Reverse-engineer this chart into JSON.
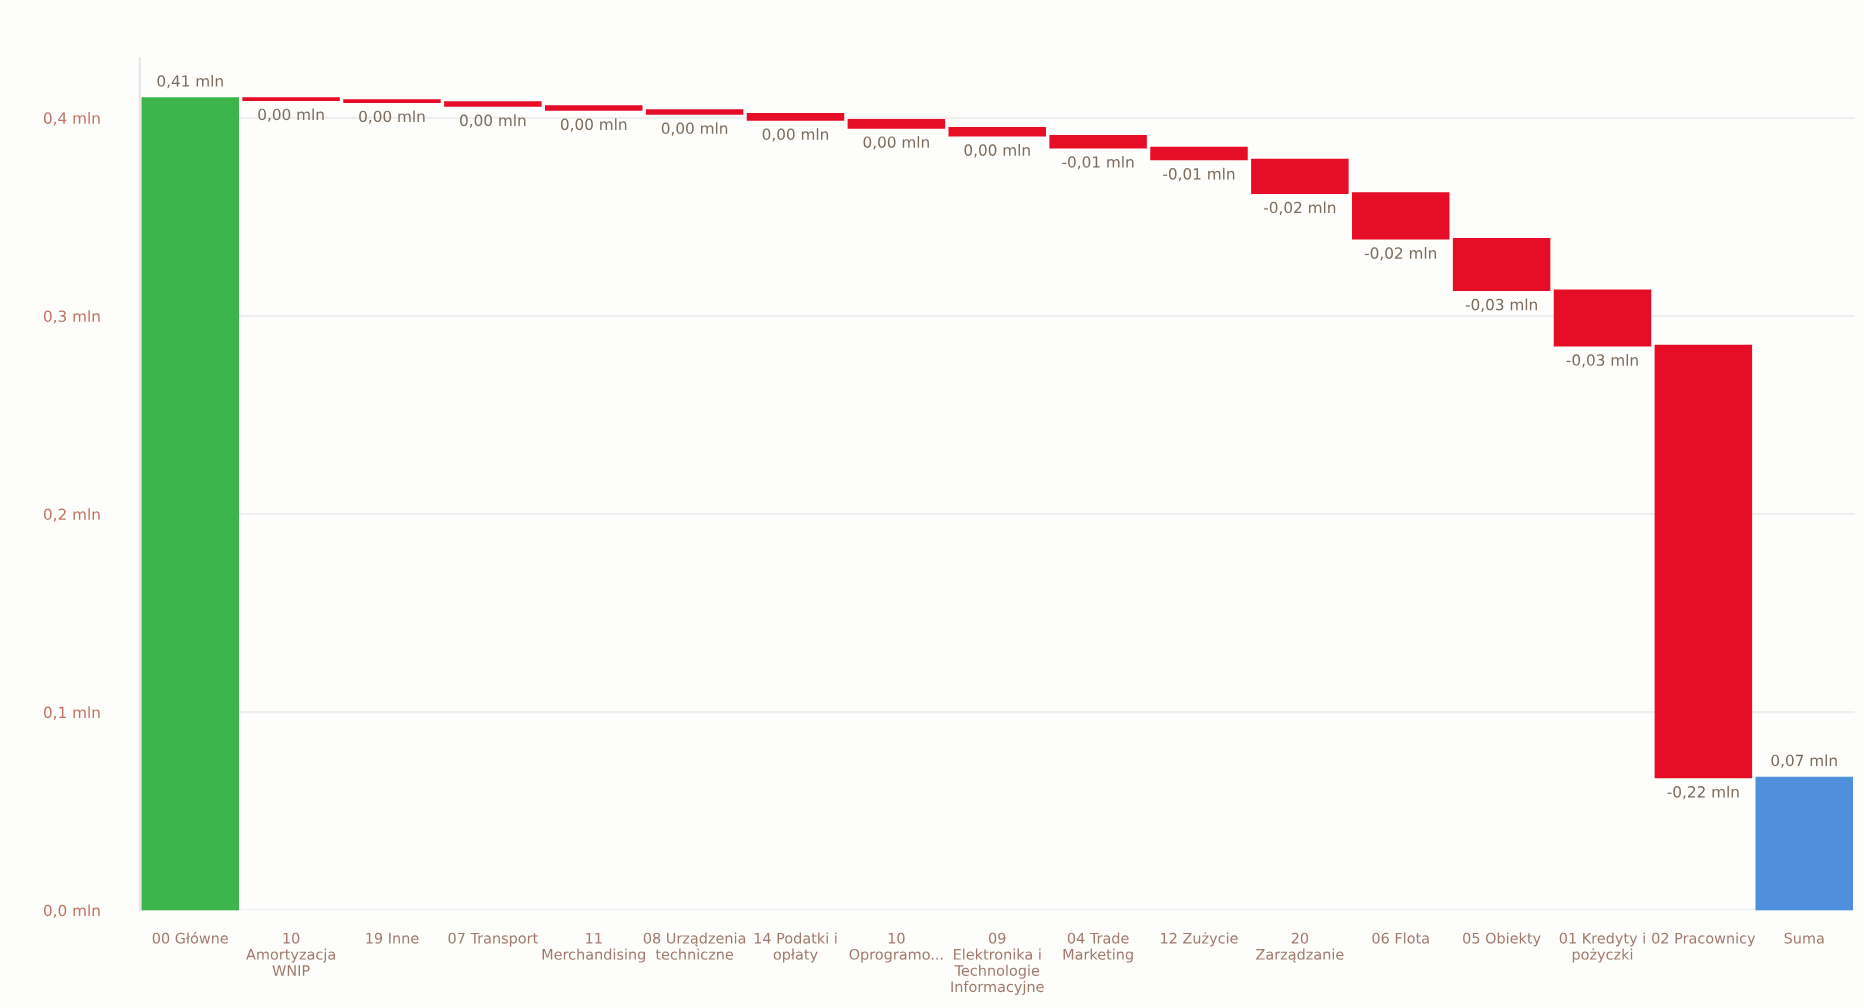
{
  "chart_data": {
    "type": "bar",
    "categories": [
      "00 Główne",
      "10 Amortyzacja WNIP",
      "19 Inne",
      "07 Transport",
      "11 Merchandising",
      "08 Urządzenia techniczne",
      "14 Podatki i opłaty",
      "10 Oprogramo...",
      "09 Elektronika i Technologie Informacyjne",
      "04 Trade Marketing",
      "12 Zużycie",
      "20 Zarządzanie",
      "06 Flota",
      "05 Obiekty",
      "01 Kredyty i pożyczki",
      "02 Pracownicy",
      "Suma"
    ],
    "values": [
      0.41,
      -0.001,
      -0.001,
      -0.002,
      -0.002,
      -0.002,
      -0.003,
      -0.004,
      -0.004,
      -0.006,
      -0.006,
      -0.017,
      -0.023,
      -0.026,
      -0.028,
      -0.218,
      0.067
    ],
    "base": [
      0,
      0.41,
      0.409,
      0.408,
      0.406,
      0.404,
      0.402,
      0.399,
      0.395,
      0.391,
      0.385,
      0.379,
      0.362,
      0.339,
      0.313,
      0.285,
      0
    ],
    "colors": [
      "#3cb54a",
      "#e60d26",
      "#e60d26",
      "#e60d26",
      "#e60d26",
      "#e60d26",
      "#e60d26",
      "#e60d26",
      "#e60d26",
      "#e60d26",
      "#e60d26",
      "#e60d26",
      "#e60d26",
      "#e60d26",
      "#e60d26",
      "#e60d26",
      "#4f8fdb"
    ],
    "value_labels": [
      "0,41 mln",
      "0,00 mln",
      "0,00 mln",
      "0,00 mln",
      "0,00 mln",
      "0,00 mln",
      "0,00 mln",
      "0,00 mln",
      "0,00 mln",
      "-0,01 mln",
      "-0,01 mln",
      "-0,02 mln",
      "-0,02 mln",
      "-0,03 mln",
      "-0,03 mln",
      "-0,22 mln",
      "0,07 mln"
    ],
    "ylim": [
      0,
      0.43
    ],
    "yticks": [
      {
        "value": 0,
        "label": "0,0 mln"
      },
      {
        "value": 0.1,
        "label": "0,1 mln"
      },
      {
        "value": 0.2,
        "label": "0,2 mln"
      },
      {
        "value": 0.3,
        "label": "0,3 mln"
      },
      {
        "value": 0.4,
        "label": "0,4 mln"
      }
    ],
    "grid": "y"
  }
}
